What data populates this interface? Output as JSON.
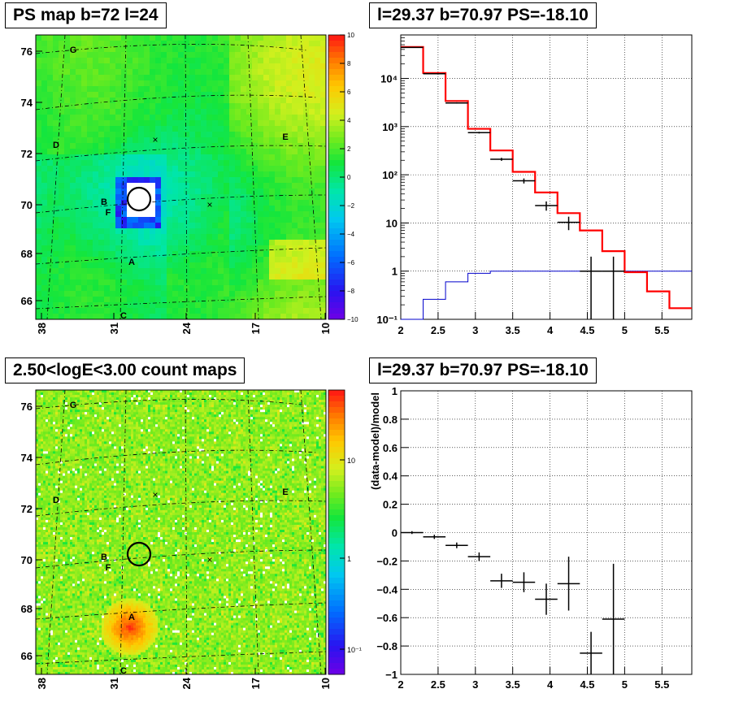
{
  "titles": {
    "ps_map": "PS map b=72 l=24",
    "count_map": "2.50<logE<3.00 count maps",
    "spectrum": "l=29.37 b=70.97 PS=-18.10",
    "residual": "l=29.37 b=70.97 PS=-18.10"
  },
  "colors": {
    "model": "#ff0000",
    "background": "#0000cc",
    "data": "#000000"
  },
  "chart_data": [
    {
      "type": "heatmap",
      "title": "PS map b=72 l=24",
      "x_ticks": [
        "38",
        "31",
        "24",
        "17",
        "10"
      ],
      "y_ticks": [
        "76",
        "74",
        "72",
        "70",
        "68",
        "66"
      ],
      "colorbar_ticks": [
        "10",
        "8",
        "6",
        "4",
        "2",
        "0",
        "−2",
        "−4",
        "−6",
        "−8",
        "−10"
      ],
      "colorbar_range": [
        -10,
        10
      ],
      "annotations": [
        "G",
        "D",
        "E",
        "B",
        "F",
        "A",
        "C"
      ],
      "markers": [
        "×",
        "×"
      ]
    },
    {
      "type": "line",
      "title": "l=29.37 b=70.97 PS=-18.10",
      "log_y": true,
      "xlim": [
        2,
        5.9
      ],
      "ylim": [
        0.1,
        80000
      ],
      "x_ticks": [
        "2",
        "2.5",
        "3",
        "3.5",
        "4",
        "4.5",
        "5",
        "5.5"
      ],
      "y_ticks": [
        "10⁴",
        "10³",
        "10²",
        "10",
        "1",
        "10⁻¹"
      ],
      "bin_edges": [
        2.0,
        2.3,
        2.6,
        2.9,
        3.2,
        3.5,
        3.8,
        4.1,
        4.4,
        4.7,
        5.0,
        5.3,
        5.6,
        5.9
      ],
      "series": [
        {
          "values": [
            45000,
            13000,
            3400,
            900,
            320,
            115,
            43,
            16,
            7,
            2.6,
            0.95,
            0.38,
            0.17
          ]
        },
        {
          "values": [
            0.08,
            0.26,
            0.6,
            0.9,
            1.0,
            1.0,
            1.0,
            1.0,
            1.0,
            1.0,
            1.0,
            1.0,
            1.0
          ]
        }
      ],
      "data_points": [
        {
          "x": 2.15,
          "y": 44000,
          "xerr": 0.15,
          "ylo": 43500,
          "yhi": 44500
        },
        {
          "x": 2.45,
          "y": 12500,
          "xerr": 0.15,
          "ylo": 12300,
          "yhi": 12700
        },
        {
          "x": 2.75,
          "y": 3100,
          "xerr": 0.15,
          "ylo": 3000,
          "yhi": 3200
        },
        {
          "x": 3.05,
          "y": 750,
          "xerr": 0.15,
          "ylo": 720,
          "yhi": 780
        },
        {
          "x": 3.35,
          "y": 210,
          "xerr": 0.15,
          "ylo": 195,
          "yhi": 225
        },
        {
          "x": 3.65,
          "y": 75,
          "xerr": 0.15,
          "ylo": 66,
          "yhi": 84
        },
        {
          "x": 3.95,
          "y": 23,
          "xerr": 0.15,
          "ylo": 18,
          "yhi": 28
        },
        {
          "x": 4.25,
          "y": 10.3,
          "xerr": 0.15,
          "ylo": 7.1,
          "yhi": 13.5
        },
        {
          "x": 4.55,
          "y": 1.0,
          "xerr": 0.15,
          "ylo": 0.08,
          "yhi": 2.0
        },
        {
          "x": 4.85,
          "y": 1.0,
          "xerr": 0.15,
          "ylo": 0.08,
          "yhi": 2.0
        }
      ]
    },
    {
      "type": "heatmap",
      "title": "2.50<logE<3.00 count maps",
      "x_ticks": [
        "38",
        "31",
        "24",
        "17",
        "10"
      ],
      "y_ticks": [
        "76",
        "74",
        "72",
        "70",
        "68",
        "66"
      ],
      "colorbar_ticks": [
        "10",
        "1",
        "10⁻¹"
      ],
      "colorbar_log": true,
      "annotations": [
        "G",
        "D",
        "E",
        "B",
        "F",
        "A",
        "C"
      ],
      "markers": [
        "×",
        "×"
      ]
    },
    {
      "type": "scatter",
      "title": "l=29.37 b=70.97 PS=-18.10",
      "ylabel": "(data-model)/model",
      "xlim": [
        2,
        5.9
      ],
      "ylim": [
        -1,
        1
      ],
      "x_ticks": [
        "2",
        "2.5",
        "3",
        "3.5",
        "4",
        "4.5",
        "5",
        "5.5"
      ],
      "y_ticks": [
        "1",
        "0.8",
        "0.6",
        "0.4",
        "0.2",
        "0",
        "−0.2",
        "−0.4",
        "−0.6",
        "−0.8",
        "−1"
      ],
      "points": [
        {
          "x": 2.15,
          "y": 0.0,
          "xerr": 0.15,
          "yerr": 0.01
        },
        {
          "x": 2.45,
          "y": -0.03,
          "xerr": 0.15,
          "yerr": 0.015
        },
        {
          "x": 2.75,
          "y": -0.09,
          "xerr": 0.15,
          "yerr": 0.02
        },
        {
          "x": 3.05,
          "y": -0.17,
          "xerr": 0.15,
          "yerr": 0.03
        },
        {
          "x": 3.35,
          "y": -0.34,
          "xerr": 0.15,
          "yerr": 0.05
        },
        {
          "x": 3.65,
          "y": -0.35,
          "xerr": 0.15,
          "yerr": 0.07
        },
        {
          "x": 3.95,
          "y": -0.47,
          "xerr": 0.15,
          "yerr": 0.11
        },
        {
          "x": 4.25,
          "y": -0.36,
          "xerr": 0.15,
          "yerr": 0.19
        },
        {
          "x": 4.55,
          "y": -0.85,
          "xerr": 0.15,
          "yerr": 0.15
        },
        {
          "x": 4.85,
          "y": -0.61,
          "xerr": 0.15,
          "yerr": 0.39
        }
      ]
    }
  ]
}
